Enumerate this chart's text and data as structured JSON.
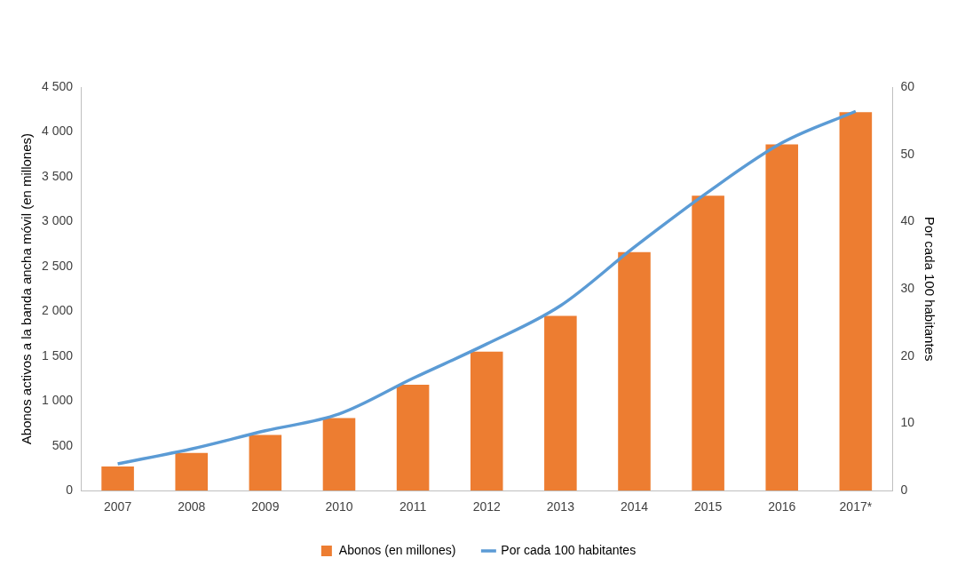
{
  "chart_data": {
    "type": "bar",
    "categories": [
      "2007",
      "2008",
      "2009",
      "2010",
      "2011",
      "2012",
      "2013",
      "2014",
      "2015",
      "2016",
      "2017*"
    ],
    "series": [
      {
        "name": "Abonos (en millones)",
        "color": "#ed7d31",
        "values": [
          270,
          420,
          620,
          810,
          1180,
          1550,
          1950,
          2660,
          3290,
          3860,
          4220
        ]
      },
      {
        "name": "Por cada 100 habitantes",
        "type": "line",
        "axis": "y2",
        "color": "#5b9bd5",
        "values": [
          4.0,
          6.2,
          8.9,
          11.4,
          16.7,
          21.8,
          27.5,
          36.2,
          44.4,
          51.7,
          56.4
        ]
      }
    ],
    "ylabel": "Abonos activos a la banda ancha móvil (en millones)",
    "y2label": "Por cada 100 habitantes",
    "ylim": [
      0,
      4500
    ],
    "yticks": [
      0,
      500,
      {
        "value": 1000,
        "label": "1 000"
      },
      {
        "value": 1500,
        "label": "1 500"
      },
      {
        "value": 2000,
        "label": "2 000"
      },
      {
        "value": 2500,
        "label": "2 500"
      },
      {
        "value": 3000,
        "label": "3 000"
      },
      {
        "value": 3500,
        "label": "3 500"
      },
      {
        "value": 4000,
        "label": "4 000"
      },
      {
        "value": 4500,
        "label": "4 500"
      }
    ],
    "y2lim": [
      0,
      60
    ],
    "y2ticks": [
      0,
      10,
      20,
      30,
      40,
      50,
      60
    ],
    "legend": "bottom",
    "marker": "none",
    "line_style": "solid"
  }
}
